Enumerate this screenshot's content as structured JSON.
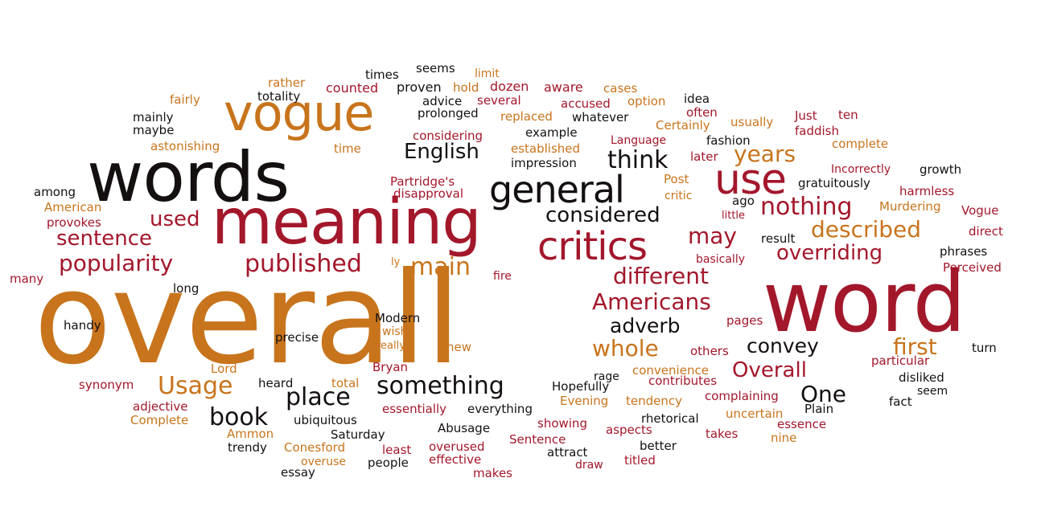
{
  "palette": {
    "black": "#141010",
    "dark_red": "#a3172b",
    "red": "#b8222c",
    "orange": "#c8741c",
    "brown": "#8a2a1c",
    "gold": "#d08a1e"
  },
  "words": [
    {
      "text": "overall",
      "color": "orange"
    },
    {
      "text": "word",
      "color": "dark_red"
    },
    {
      "text": "meaning",
      "color": "dark_red"
    },
    {
      "text": "words",
      "color": "black"
    },
    {
      "text": "vogue",
      "color": "orange"
    },
    {
      "text": "general",
      "color": "black"
    },
    {
      "text": "critics",
      "color": "dark_red"
    },
    {
      "text": "use",
      "color": "dark_red"
    },
    {
      "text": "years",
      "color": "orange"
    },
    {
      "text": "English",
      "color": "black"
    },
    {
      "text": "think",
      "color": "black"
    },
    {
      "text": "considered",
      "color": "black"
    },
    {
      "text": "nothing",
      "color": "dark_red"
    },
    {
      "text": "described",
      "color": "orange"
    },
    {
      "text": "may",
      "color": "dark_red"
    },
    {
      "text": "overriding",
      "color": "dark_red"
    },
    {
      "text": "used",
      "color": "dark_red"
    },
    {
      "text": "sentence",
      "color": "dark_red"
    },
    {
      "text": "popularity",
      "color": "dark_red"
    },
    {
      "text": "published",
      "color": "dark_red"
    },
    {
      "text": "main",
      "color": "orange"
    },
    {
      "text": "different",
      "color": "dark_red"
    },
    {
      "text": "Americans",
      "color": "dark_red"
    },
    {
      "text": "adverb",
      "color": "black"
    },
    {
      "text": "whole",
      "color": "orange"
    },
    {
      "text": "convey",
      "color": "black"
    },
    {
      "text": "first",
      "color": "orange"
    },
    {
      "text": "Overall",
      "color": "dark_red"
    },
    {
      "text": "One",
      "color": "black"
    },
    {
      "text": "something",
      "color": "black"
    },
    {
      "text": "place",
      "color": "black"
    },
    {
      "text": "Usage",
      "color": "orange"
    },
    {
      "text": "book",
      "color": "black"
    },
    {
      "text": "times",
      "color": "black"
    },
    {
      "text": "seems",
      "color": "black"
    },
    {
      "text": "limit",
      "color": "orange"
    },
    {
      "text": "rather",
      "color": "orange"
    },
    {
      "text": "counted",
      "color": "dark_red"
    },
    {
      "text": "proven",
      "color": "black"
    },
    {
      "text": "hold",
      "color": "orange"
    },
    {
      "text": "dozen",
      "color": "dark_red"
    },
    {
      "text": "aware",
      "color": "dark_red"
    },
    {
      "text": "cases",
      "color": "orange"
    },
    {
      "text": "totality",
      "color": "black"
    },
    {
      "text": "advice",
      "color": "black"
    },
    {
      "text": "several",
      "color": "dark_red"
    },
    {
      "text": "accused",
      "color": "dark_red"
    },
    {
      "text": "option",
      "color": "orange"
    },
    {
      "text": "idea",
      "color": "black"
    },
    {
      "text": "fairly",
      "color": "orange"
    },
    {
      "text": "prolonged",
      "color": "black"
    },
    {
      "text": "replaced",
      "color": "orange"
    },
    {
      "text": "whatever",
      "color": "black"
    },
    {
      "text": "often",
      "color": "dark_red"
    },
    {
      "text": "Just",
      "color": "dark_red"
    },
    {
      "text": "ten",
      "color": "dark_red"
    },
    {
      "text": "mainly",
      "color": "black"
    },
    {
      "text": "maybe",
      "color": "black"
    },
    {
      "text": "considering",
      "color": "dark_red"
    },
    {
      "text": "example",
      "color": "black"
    },
    {
      "text": "Language",
      "color": "dark_red"
    },
    {
      "text": "Certainly",
      "color": "orange"
    },
    {
      "text": "usually",
      "color": "orange"
    },
    {
      "text": "faddish",
      "color": "dark_red"
    },
    {
      "text": "fashion",
      "color": "black"
    },
    {
      "text": "astonishing",
      "color": "orange"
    },
    {
      "text": "time",
      "color": "orange"
    },
    {
      "text": "established",
      "color": "orange"
    },
    {
      "text": "complete",
      "color": "orange"
    },
    {
      "text": "impression",
      "color": "black"
    },
    {
      "text": "later",
      "color": "dark_red"
    },
    {
      "text": "Incorrectly",
      "color": "dark_red"
    },
    {
      "text": "growth",
      "color": "black"
    },
    {
      "text": "Partridge's",
      "color": "dark_red"
    },
    {
      "text": "Post",
      "color": "orange"
    },
    {
      "text": "gratuitously",
      "color": "black"
    },
    {
      "text": "among",
      "color": "black"
    },
    {
      "text": "disapproval",
      "color": "dark_red"
    },
    {
      "text": "critic",
      "color": "orange"
    },
    {
      "text": "ago",
      "color": "black"
    },
    {
      "text": "harmless",
      "color": "dark_red"
    },
    {
      "text": "American",
      "color": "orange"
    },
    {
      "text": "little",
      "color": "dark_red"
    },
    {
      "text": "Murdering",
      "color": "orange"
    },
    {
      "text": "Vogue",
      "color": "dark_red"
    },
    {
      "text": "provokes",
      "color": "dark_red"
    },
    {
      "text": "result",
      "color": "black"
    },
    {
      "text": "direct",
      "color": "dark_red"
    },
    {
      "text": "basically",
      "color": "dark_red"
    },
    {
      "text": "phrases",
      "color": "black"
    },
    {
      "text": "ly",
      "color": "orange"
    },
    {
      "text": "Perceived",
      "color": "dark_red"
    },
    {
      "text": "many",
      "color": "dark_red"
    },
    {
      "text": "fire",
      "color": "dark_red"
    },
    {
      "text": "long",
      "color": "black"
    },
    {
      "text": "handy",
      "color": "black"
    },
    {
      "text": "Modern",
      "color": "black"
    },
    {
      "text": "pages",
      "color": "dark_red"
    },
    {
      "text": "wish",
      "color": "orange"
    },
    {
      "text": "precise",
      "color": "black"
    },
    {
      "text": "really",
      "color": "orange"
    },
    {
      "text": "new",
      "color": "orange"
    },
    {
      "text": "others",
      "color": "dark_red"
    },
    {
      "text": "turn",
      "color": "black"
    },
    {
      "text": "rage",
      "color": "black"
    },
    {
      "text": "particular",
      "color": "dark_red"
    },
    {
      "text": "Lord",
      "color": "orange"
    },
    {
      "text": "Bryan",
      "color": "dark_red"
    },
    {
      "text": "convenience",
      "color": "orange"
    },
    {
      "text": "contributes",
      "color": "dark_red"
    },
    {
      "text": "disliked",
      "color": "black"
    },
    {
      "text": "seem",
      "color": "black"
    },
    {
      "text": "synonym",
      "color": "dark_red"
    },
    {
      "text": "heard",
      "color": "black"
    },
    {
      "text": "total",
      "color": "orange"
    },
    {
      "text": "Hopefully",
      "color": "black"
    },
    {
      "text": "Evening",
      "color": "orange"
    },
    {
      "text": "tendency",
      "color": "orange"
    },
    {
      "text": "complaining",
      "color": "dark_red"
    },
    {
      "text": "fact",
      "color": "black"
    },
    {
      "text": "adjective",
      "color": "dark_red"
    },
    {
      "text": "essentially",
      "color": "dark_red"
    },
    {
      "text": "everything",
      "color": "black"
    },
    {
      "text": "uncertain",
      "color": "orange"
    },
    {
      "text": "Plain",
      "color": "black"
    },
    {
      "text": "Complete",
      "color": "orange"
    },
    {
      "text": "ubiquitous",
      "color": "black"
    },
    {
      "text": "showing",
      "color": "dark_red"
    },
    {
      "text": "rhetorical",
      "color": "black"
    },
    {
      "text": "essence",
      "color": "dark_red"
    },
    {
      "text": "Ammon",
      "color": "orange"
    },
    {
      "text": "Abusage",
      "color": "black"
    },
    {
      "text": "aspects",
      "color": "dark_red"
    },
    {
      "text": "nine",
      "color": "orange"
    },
    {
      "text": "trendy",
      "color": "black"
    },
    {
      "text": "Saturday",
      "color": "black"
    },
    {
      "text": "Sentence",
      "color": "dark_red"
    },
    {
      "text": "takes",
      "color": "dark_red"
    },
    {
      "text": "Conesford",
      "color": "orange"
    },
    {
      "text": "least",
      "color": "dark_red"
    },
    {
      "text": "overused",
      "color": "dark_red"
    },
    {
      "text": "better",
      "color": "black"
    },
    {
      "text": "attract",
      "color": "black"
    },
    {
      "text": "overuse",
      "color": "orange"
    },
    {
      "text": "people",
      "color": "black"
    },
    {
      "text": "effective",
      "color": "dark_red"
    },
    {
      "text": "titled",
      "color": "dark_red"
    },
    {
      "text": "draw",
      "color": "dark_red"
    },
    {
      "text": "essay",
      "color": "black"
    },
    {
      "text": "makes",
      "color": "dark_red"
    }
  ]
}
